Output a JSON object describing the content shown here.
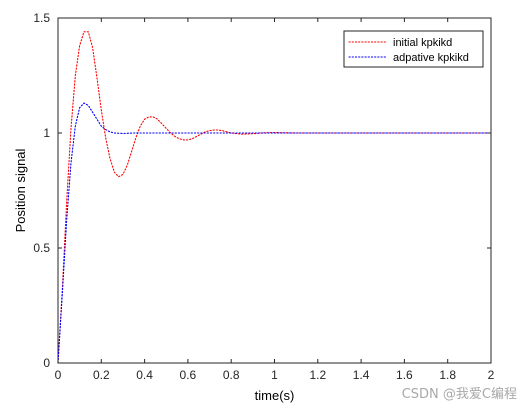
{
  "chart_data": {
    "type": "line",
    "title": "",
    "xlabel": "time(s)",
    "ylabel": "Position signal",
    "xlim": [
      0,
      2
    ],
    "ylim": [
      0,
      1.5
    ],
    "xticks": [
      0,
      0.2,
      0.4,
      0.6,
      0.8,
      1,
      1.2,
      1.4,
      1.6,
      1.8,
      2
    ],
    "xtick_labels": [
      "0",
      "0.2",
      "0.4",
      "0.6",
      "0.8",
      "1",
      "1.2",
      "1.4",
      "1.6",
      "1.8",
      "2"
    ],
    "yticks": [
      0,
      0.5,
      1,
      1.5
    ],
    "ytick_labels": [
      "0",
      "0.5",
      "1",
      "1.5"
    ],
    "grid": false,
    "legend_position": "top-right",
    "series": [
      {
        "name": "initial kpkikd",
        "color": "#ff0000",
        "line_style": "dotted",
        "points": [
          [
            0,
            0
          ],
          [
            0.02,
            0.32
          ],
          [
            0.04,
            0.7
          ],
          [
            0.06,
            1.02
          ],
          [
            0.08,
            1.25
          ],
          [
            0.1,
            1.38
          ],
          [
            0.12,
            1.44
          ],
          [
            0.14,
            1.44
          ],
          [
            0.16,
            1.37
          ],
          [
            0.18,
            1.24
          ],
          [
            0.2,
            1.1
          ],
          [
            0.22,
            0.98
          ],
          [
            0.24,
            0.89
          ],
          [
            0.26,
            0.83
          ],
          [
            0.28,
            0.81
          ],
          [
            0.3,
            0.82
          ],
          [
            0.32,
            0.86
          ],
          [
            0.34,
            0.92
          ],
          [
            0.36,
            0.98
          ],
          [
            0.38,
            1.03
          ],
          [
            0.4,
            1.06
          ],
          [
            0.42,
            1.07
          ],
          [
            0.44,
            1.07
          ],
          [
            0.46,
            1.06
          ],
          [
            0.48,
            1.04
          ],
          [
            0.5,
            1.02
          ],
          [
            0.52,
            1.0
          ],
          [
            0.54,
            0.985
          ],
          [
            0.56,
            0.975
          ],
          [
            0.58,
            0.97
          ],
          [
            0.6,
            0.97
          ],
          [
            0.62,
            0.975
          ],
          [
            0.64,
            0.985
          ],
          [
            0.66,
            0.995
          ],
          [
            0.68,
            1.005
          ],
          [
            0.7,
            1.01
          ],
          [
            0.72,
            1.013
          ],
          [
            0.74,
            1.013
          ],
          [
            0.76,
            1.01
          ],
          [
            0.78,
            1.005
          ],
          [
            0.8,
            1.0
          ],
          [
            0.85,
            0.995
          ],
          [
            0.9,
            0.997
          ],
          [
            0.95,
            1.001
          ],
          [
            1.0,
            1.002
          ],
          [
            1.1,
            1.0
          ],
          [
            1.2,
            1.0
          ],
          [
            1.4,
            1.0
          ],
          [
            1.6,
            1.0
          ],
          [
            1.8,
            1.0
          ],
          [
            2.0,
            1.0
          ]
        ]
      },
      {
        "name": "adpative kpkikd",
        "color": "#0000ff",
        "line_style": "dotted",
        "points": [
          [
            0,
            0
          ],
          [
            0.02,
            0.3
          ],
          [
            0.04,
            0.62
          ],
          [
            0.06,
            0.87
          ],
          [
            0.08,
            1.03
          ],
          [
            0.1,
            1.11
          ],
          [
            0.12,
            1.13
          ],
          [
            0.14,
            1.12
          ],
          [
            0.16,
            1.09
          ],
          [
            0.18,
            1.06
          ],
          [
            0.2,
            1.03
          ],
          [
            0.22,
            1.015
          ],
          [
            0.24,
            1.005
          ],
          [
            0.26,
            1.0
          ],
          [
            0.3,
            0.998
          ],
          [
            0.35,
            1.0
          ],
          [
            0.4,
            1.0
          ],
          [
            0.5,
            1.0
          ],
          [
            0.6,
            1.0
          ],
          [
            0.8,
            1.0
          ],
          [
            1.0,
            1.0
          ],
          [
            1.2,
            1.0
          ],
          [
            1.4,
            1.0
          ],
          [
            1.6,
            1.0
          ],
          [
            1.8,
            1.0
          ],
          [
            2.0,
            1.0
          ]
        ]
      }
    ]
  },
  "watermark": "CSDN @我爱C编程"
}
